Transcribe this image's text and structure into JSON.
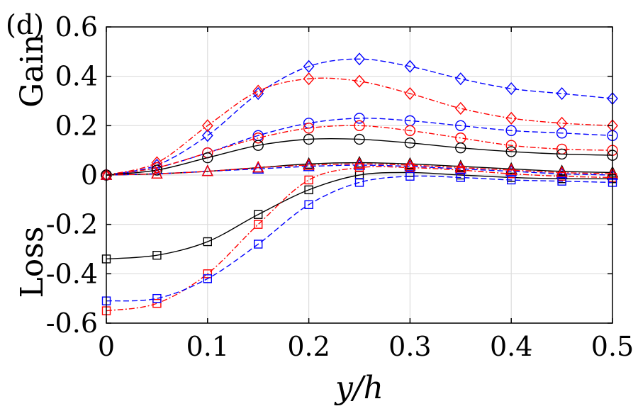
{
  "chart_data": {
    "type": "line",
    "panel_label": "(d)",
    "xlabel": "y/h",
    "ylabel_top": "Gain",
    "ylabel_bottom": "Loss",
    "xlim": [
      0,
      0.5
    ],
    "ylim": [
      -0.6,
      0.6
    ],
    "xticks": [
      "0",
      "0.1",
      "0.2",
      "0.3",
      "0.4",
      "0.5"
    ],
    "yticks": [
      "0.6",
      "0.4",
      "0.2",
      "0",
      "-0.2",
      "-0.4",
      "-0.6"
    ],
    "grid": true,
    "colors": {
      "black": "#000000",
      "blue": "#0000ff",
      "red": "#ff0000"
    },
    "series": [
      {
        "name": "blue-diamond",
        "color": "#0000ff",
        "marker": "diamond",
        "dash": "8,4",
        "x": [
          0,
          0.05,
          0.1,
          0.15,
          0.2,
          0.25,
          0.3,
          0.35,
          0.4,
          0.45,
          0.5
        ],
        "y": [
          0,
          0.04,
          0.16,
          0.33,
          0.44,
          0.47,
          0.44,
          0.39,
          0.35,
          0.33,
          0.31
        ]
      },
      {
        "name": "red-diamond",
        "color": "#ff0000",
        "marker": "diamond",
        "dash": "8,3,2,3",
        "x": [
          0,
          0.05,
          0.1,
          0.15,
          0.2,
          0.25,
          0.3,
          0.35,
          0.4,
          0.45,
          0.5
        ],
        "y": [
          0,
          0.05,
          0.2,
          0.34,
          0.39,
          0.38,
          0.33,
          0.27,
          0.23,
          0.21,
          0.2
        ]
      },
      {
        "name": "blue-circle",
        "color": "#0000ff",
        "marker": "circle",
        "dash": "8,4",
        "x": [
          0,
          0.05,
          0.1,
          0.15,
          0.2,
          0.25,
          0.3,
          0.35,
          0.4,
          0.45,
          0.5
        ],
        "y": [
          0,
          0.03,
          0.09,
          0.16,
          0.21,
          0.23,
          0.22,
          0.2,
          0.18,
          0.17,
          0.16
        ]
      },
      {
        "name": "red-circle",
        "color": "#ff0000",
        "marker": "circle",
        "dash": "8,3,2,3",
        "x": [
          0,
          0.05,
          0.1,
          0.15,
          0.2,
          0.25,
          0.3,
          0.35,
          0.4,
          0.45,
          0.5
        ],
        "y": [
          0,
          0.03,
          0.09,
          0.15,
          0.19,
          0.2,
          0.18,
          0.15,
          0.12,
          0.105,
          0.1
        ]
      },
      {
        "name": "black-circle",
        "color": "#000000",
        "marker": "circle",
        "dash": "",
        "x": [
          0,
          0.05,
          0.1,
          0.15,
          0.2,
          0.25,
          0.3,
          0.35,
          0.4,
          0.45,
          0.5
        ],
        "y": [
          0,
          0.02,
          0.07,
          0.12,
          0.145,
          0.145,
          0.13,
          0.11,
          0.095,
          0.085,
          0.08
        ]
      },
      {
        "name": "black-triangle",
        "color": "#000000",
        "marker": "triangle",
        "dash": "",
        "x": [
          0,
          0.05,
          0.1,
          0.15,
          0.2,
          0.25,
          0.3,
          0.35,
          0.4,
          0.45,
          0.5
        ],
        "y": [
          0,
          0.005,
          0.015,
          0.03,
          0.045,
          0.05,
          0.045,
          0.035,
          0.025,
          0.015,
          0.01
        ]
      },
      {
        "name": "blue-triangle",
        "color": "#0000ff",
        "marker": "triangle",
        "dash": "8,4",
        "x": [
          0,
          0.05,
          0.1,
          0.15,
          0.2,
          0.25,
          0.3,
          0.35,
          0.4,
          0.45,
          0.5
        ],
        "y": [
          0,
          0.005,
          0.015,
          0.025,
          0.035,
          0.04,
          0.035,
          0.025,
          0.015,
          0.005,
          0
        ]
      },
      {
        "name": "red-triangle",
        "color": "#ff0000",
        "marker": "triangle",
        "dash": "8,3,2,3",
        "x": [
          0,
          0.05,
          0.1,
          0.15,
          0.2,
          0.25,
          0.3,
          0.35,
          0.4,
          0.45,
          0.5
        ],
        "y": [
          0,
          0.005,
          0.015,
          0.03,
          0.04,
          0.045,
          0.04,
          0.03,
          0.02,
          0.01,
          0.005
        ]
      },
      {
        "name": "black-square",
        "color": "#000000",
        "marker": "square",
        "dash": "",
        "x": [
          0,
          0.05,
          0.1,
          0.15,
          0.2,
          0.25,
          0.3,
          0.35,
          0.4,
          0.45,
          0.5
        ],
        "y": [
          -0.34,
          -0.325,
          -0.27,
          -0.16,
          -0.06,
          0,
          0.01,
          0,
          -0.01,
          -0.015,
          -0.015
        ]
      },
      {
        "name": "red-square",
        "color": "#ff0000",
        "marker": "square",
        "dash": "8,3,2,3",
        "x": [
          0,
          0.05,
          0.1,
          0.15,
          0.2,
          0.25,
          0.3,
          0.35,
          0.4,
          0.45,
          0.5
        ],
        "y": [
          -0.55,
          -0.52,
          -0.4,
          -0.2,
          -0.02,
          0.03,
          0.03,
          0.02,
          0.005,
          -0.005,
          -0.01
        ]
      },
      {
        "name": "blue-square",
        "color": "#0000ff",
        "marker": "square",
        "dash": "8,4",
        "x": [
          0,
          0.05,
          0.1,
          0.15,
          0.2,
          0.25,
          0.3,
          0.35,
          0.4,
          0.45,
          0.5
        ],
        "y": [
          -0.51,
          -0.5,
          -0.42,
          -0.28,
          -0.12,
          -0.03,
          -0.005,
          -0.01,
          -0.02,
          -0.025,
          -0.03
        ]
      }
    ]
  }
}
